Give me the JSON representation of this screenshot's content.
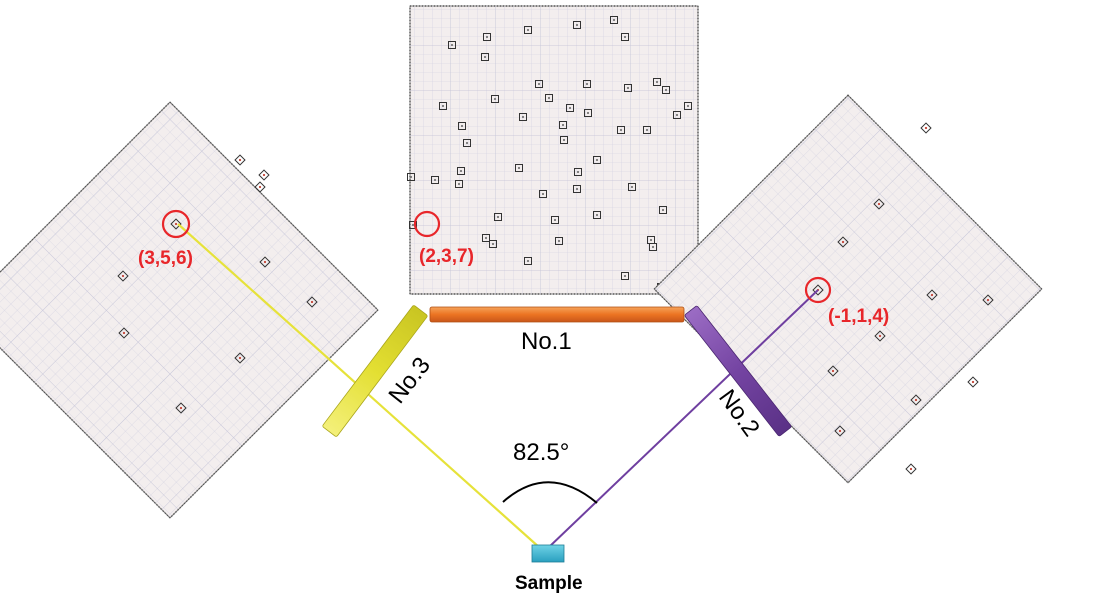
{
  "detectors": {
    "no1": {
      "label": "No.1"
    },
    "no2": {
      "label": "No.2"
    },
    "no3": {
      "label": "No.3"
    }
  },
  "angle": {
    "label": "82.5°"
  },
  "sample": {
    "label": "Sample"
  },
  "patterns": {
    "center": {
      "spot_label": "(2,3,7)"
    },
    "left": {
      "spot_label": "(3,5,6)"
    },
    "right": {
      "spot_label": "(-1,1,4)"
    }
  },
  "colors": {
    "no1_bar": "#f07d28",
    "no2_bar": "#7b4aa6",
    "no3_bar": "#e6e23a",
    "left_beam": "#e6e23a",
    "right_beam": "#6f3fa0",
    "highlight": "#e8262a",
    "sample_box": "#3cb6d0",
    "film_bg": "#f3edee",
    "grid_line": "#c8c8dc"
  }
}
